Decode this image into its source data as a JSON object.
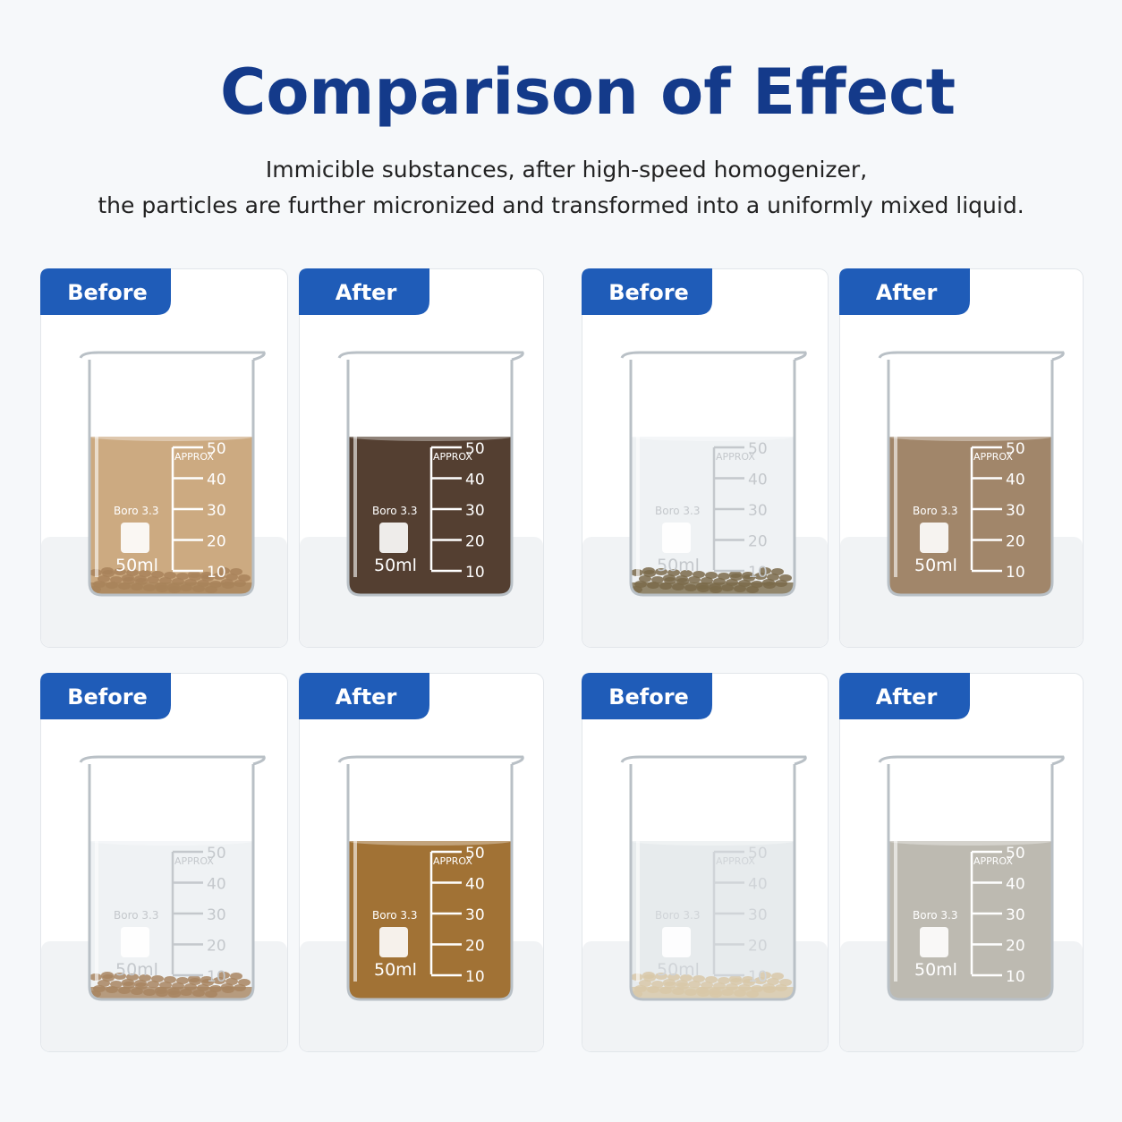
{
  "header": {
    "title": "Comparison of Effect",
    "subtitle": [
      "Immicible substances, after high-speed homogenizer,",
      "the particles are further micronized and transformed into a uniformly mixed liquid."
    ]
  },
  "beaker": {
    "approx": "APPROX",
    "brand": "Boro 3.3",
    "volume": "50ml",
    "scale": [
      50,
      40,
      30,
      20,
      10
    ]
  },
  "panels": [
    {
      "label": "Before",
      "liquid": "#c9a57a",
      "sediment": "#a8835a",
      "marking": "#ffffff"
    },
    {
      "label": "After",
      "liquid": "#4b3526",
      "marking": "#ffffff"
    },
    {
      "label": "Before",
      "liquid": "#eef1f3",
      "sediment": "#7a6a4a",
      "marking": "#c4c8cc"
    },
    {
      "label": "After",
      "liquid": "#9c8062",
      "marking": "#ffffff"
    },
    {
      "label": "Before",
      "liquid": "#eef1f3",
      "sediment": "#a88560",
      "marking": "#c4c8cc"
    },
    {
      "label": "After",
      "liquid": "#9c6a2a",
      "marking": "#ffffff"
    },
    {
      "label": "Before",
      "liquid": "#e6eaec",
      "sediment": "#d8c8a8",
      "marking": "#d0d4d8"
    },
    {
      "label": "After",
      "liquid": "#b9b6ad",
      "marking": "#ffffff"
    }
  ]
}
